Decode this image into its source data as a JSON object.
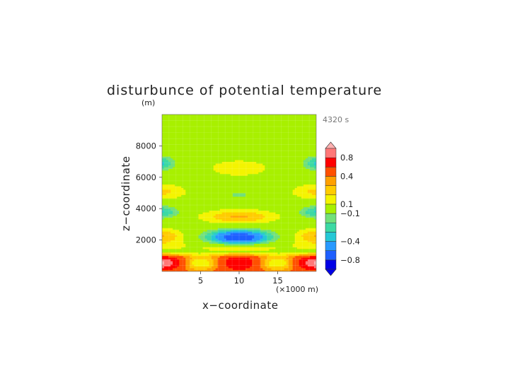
{
  "chart_data": {
    "type": "heatmap",
    "title": "disturbunce of potential temperature",
    "ylabel": "z−coordinate",
    "xlabel": "x−coordinate",
    "yunit": "(m)",
    "xunit": "(×1000 m)",
    "time_label": "4320 s",
    "xlim": [
      0,
      20
    ],
    "ylim": [
      0,
      10000
    ],
    "xticks": [
      5,
      10,
      15
    ],
    "yticks": [
      2000,
      4000,
      6000,
      8000
    ],
    "colorbar": {
      "min": -1.0,
      "max": 1.0,
      "tick_values": [
        0.8,
        0.4,
        0.1,
        -0.1,
        -0.4,
        -0.8
      ],
      "tick_labels": [
        "0.8",
        "0.4",
        "0.1",
        "−0.1",
        "−0.4",
        "−0.8"
      ],
      "extend": "both"
    },
    "features": [
      {
        "x": 10,
        "z": 500,
        "value": 0.6
      },
      {
        "x": 10,
        "z": 700,
        "value": 0.35
      },
      {
        "x": 10,
        "z": 2200,
        "value": -0.6
      },
      {
        "x": 10,
        "z": 3500,
        "value": 0.2
      },
      {
        "x": 10,
        "z": 4900,
        "value": -0.3
      },
      {
        "x": 10,
        "z": 6600,
        "value": 0.1
      },
      {
        "x": 0,
        "z": 500,
        "value": 0.9
      },
      {
        "x": 0,
        "z": 2200,
        "value": 0.3
      },
      {
        "x": 0,
        "z": 3800,
        "value": -0.3
      },
      {
        "x": 0,
        "z": 5100,
        "value": 0.2
      },
      {
        "x": 0,
        "z": 6900,
        "value": -0.3
      }
    ]
  }
}
